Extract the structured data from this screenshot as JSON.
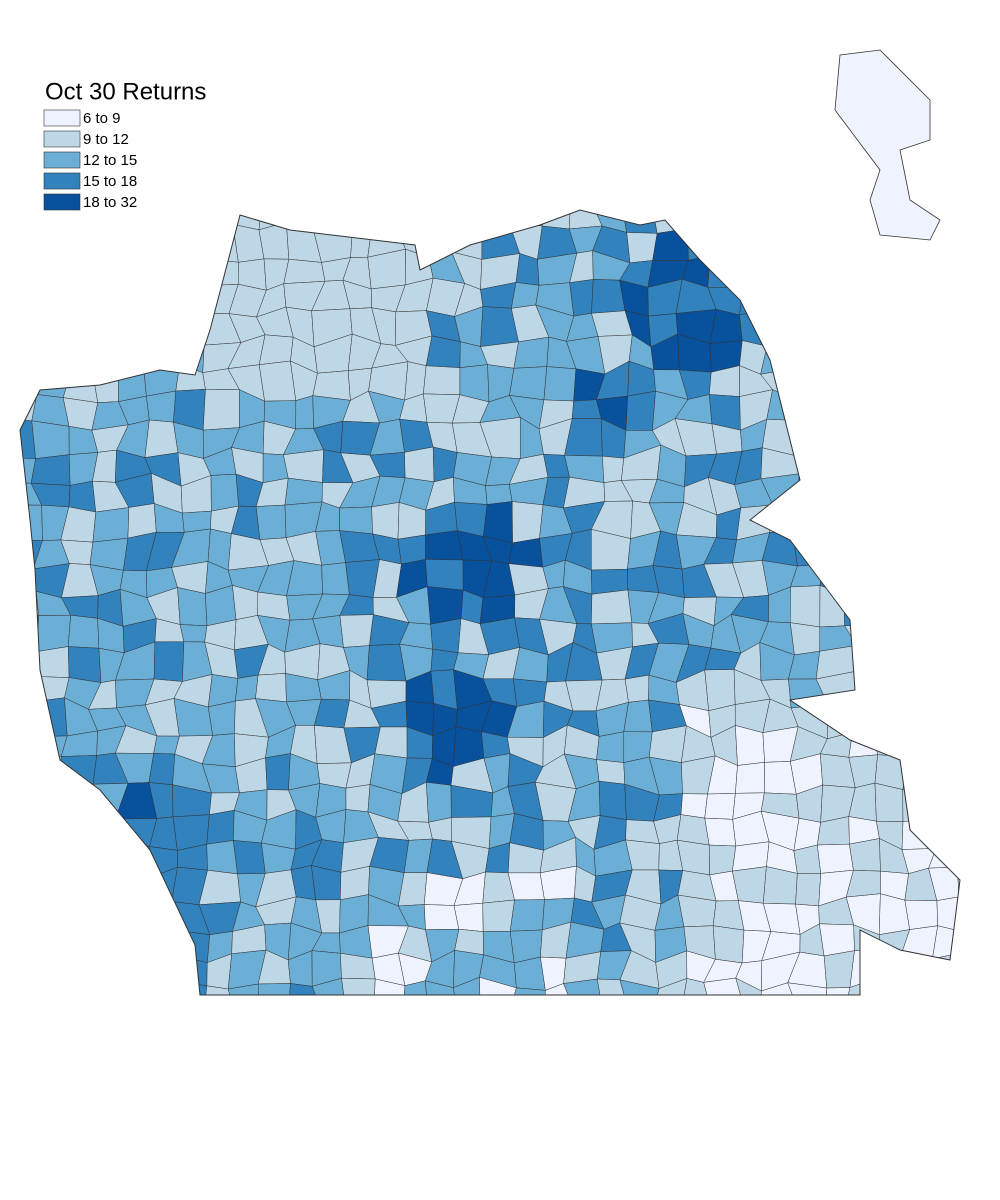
{
  "title": "Oct 30 Returns",
  "legend": [
    {
      "label": "6 to   9",
      "color": "#eff3ff"
    },
    {
      "label": "9 to 12",
      "color": "#bdd7e7"
    },
    {
      "label": "12 to 15",
      "color": "#6baed6"
    },
    {
      "label": "15 to 18",
      "color": "#3182bd"
    },
    {
      "label": "18 to 32",
      "color": "#08519c"
    }
  ]
}
